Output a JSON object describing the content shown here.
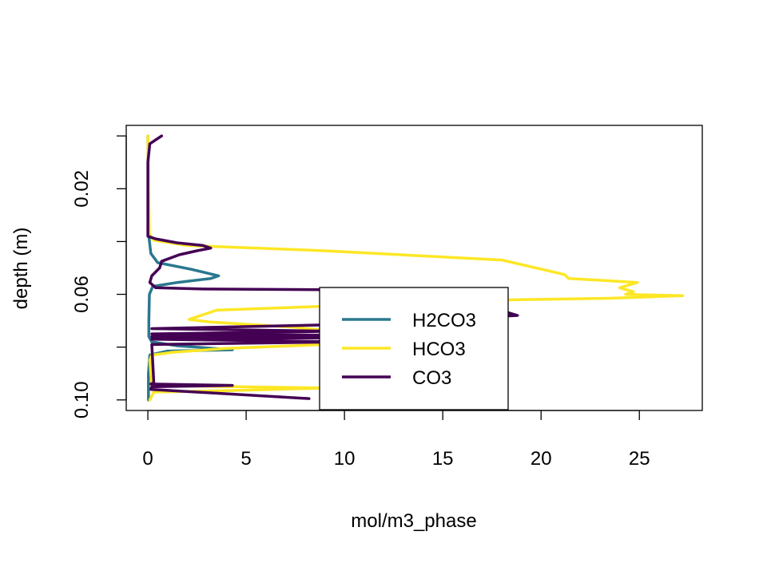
{
  "chart_data": {
    "type": "line",
    "title": "",
    "xlabel": "mol/m3_phase",
    "ylabel": "depth (m)",
    "xlim": [
      -1.1,
      28.2
    ],
    "ylim": [
      0.104,
      -0.004
    ],
    "y_reversed": true,
    "grid": false,
    "legend_position": "bottom-center",
    "x_ticks": [
      0,
      5,
      10,
      15,
      20,
      25
    ],
    "x_tick_labels": [
      "0",
      "5",
      "10",
      "15",
      "20",
      "25"
    ],
    "y_ticks": [
      0.0,
      0.02,
      0.04,
      0.06,
      0.08,
      0.1
    ],
    "y_tick_labels": [
      "",
      "0.02",
      "",
      "0.06",
      "",
      "0.10"
    ],
    "series": [
      {
        "name": "H2CO3",
        "color": "#2a788e",
        "points": [
          [
            0,
            0.0
          ],
          [
            0.02,
            0.02
          ],
          [
            0.05,
            0.038
          ],
          [
            0.15,
            0.0445
          ],
          [
            0.5,
            0.048
          ],
          [
            2.2,
            0.0505
          ],
          [
            3.6,
            0.053
          ],
          [
            3.2,
            0.054
          ],
          [
            1.5,
            0.0555
          ],
          [
            0.25,
            0.057
          ],
          [
            0.08,
            0.06
          ],
          [
            0.05,
            0.07
          ],
          [
            0.05,
            0.076
          ],
          [
            0.2,
            0.078
          ],
          [
            1.5,
            0.0795
          ],
          [
            4.3,
            0.081
          ],
          [
            1.0,
            0.0815
          ],
          [
            0.1,
            0.083
          ],
          [
            0.03,
            0.09
          ],
          [
            0.03,
            0.1
          ]
        ]
      },
      {
        "name": "HCO3",
        "color": "#fde725",
        "points": [
          [
            0,
            0.0
          ],
          [
            0.03,
            0.02
          ],
          [
            0.08,
            0.0375
          ],
          [
            0.3,
            0.0395
          ],
          [
            2.0,
            0.0415
          ],
          [
            9.0,
            0.0435
          ],
          [
            18.0,
            0.047
          ],
          [
            21.2,
            0.0525
          ],
          [
            21.4,
            0.054
          ],
          [
            24.9,
            0.0555
          ],
          [
            24.0,
            0.0575
          ],
          [
            24.7,
            0.059
          ],
          [
            24.3,
            0.06
          ],
          [
            27.2,
            0.0605
          ],
          [
            23.5,
            0.0615
          ],
          [
            15.0,
            0.0625
          ],
          [
            12.0,
            0.0637
          ],
          [
            3.5,
            0.066
          ],
          [
            2.1,
            0.0695
          ],
          [
            3.2,
            0.0705
          ],
          [
            7.5,
            0.0725
          ],
          [
            13.0,
            0.0765
          ],
          [
            9.0,
            0.079
          ],
          [
            4.0,
            0.0805
          ],
          [
            1.2,
            0.082
          ],
          [
            0.2,
            0.083
          ],
          [
            0.1,
            0.085
          ],
          [
            0.2,
            0.0945
          ],
          [
            9.0,
            0.0955
          ],
          [
            4.0,
            0.0965
          ],
          [
            0.3,
            0.097
          ],
          [
            0.1,
            0.1
          ]
        ]
      },
      {
        "name": "CO3",
        "color": "#440154",
        "points": [
          [
            0.7,
            0.0
          ],
          [
            0.1,
            0.003
          ],
          [
            0.0,
            0.01
          ],
          [
            0.0,
            0.038
          ],
          [
            0.4,
            0.039
          ],
          [
            1.5,
            0.0405
          ],
          [
            2.8,
            0.0415
          ],
          [
            3.2,
            0.0425
          ],
          [
            2.5,
            0.0435
          ],
          [
            1.6,
            0.045
          ],
          [
            0.7,
            0.0475
          ],
          [
            0.6,
            0.05
          ],
          [
            0.2,
            0.053
          ],
          [
            0.1,
            0.0555
          ],
          [
            0.4,
            0.0575
          ],
          [
            2.8,
            0.058
          ],
          [
            14.5,
            0.0585
          ],
          [
            18.8,
            0.068
          ],
          [
            9.5,
            0.0715
          ],
          [
            0.2,
            0.073
          ],
          [
            9.5,
            0.074
          ],
          [
            0.2,
            0.075
          ],
          [
            9.5,
            0.0755
          ],
          [
            0.2,
            0.076
          ],
          [
            9.0,
            0.0765
          ],
          [
            0.2,
            0.077
          ],
          [
            10.0,
            0.078
          ],
          [
            0.2,
            0.079
          ],
          [
            0.3,
            0.0935
          ],
          [
            0.15,
            0.094
          ],
          [
            4.3,
            0.0945
          ],
          [
            0.2,
            0.095
          ],
          [
            0.15,
            0.096
          ],
          [
            8.2,
            0.0995
          ]
        ]
      }
    ]
  }
}
